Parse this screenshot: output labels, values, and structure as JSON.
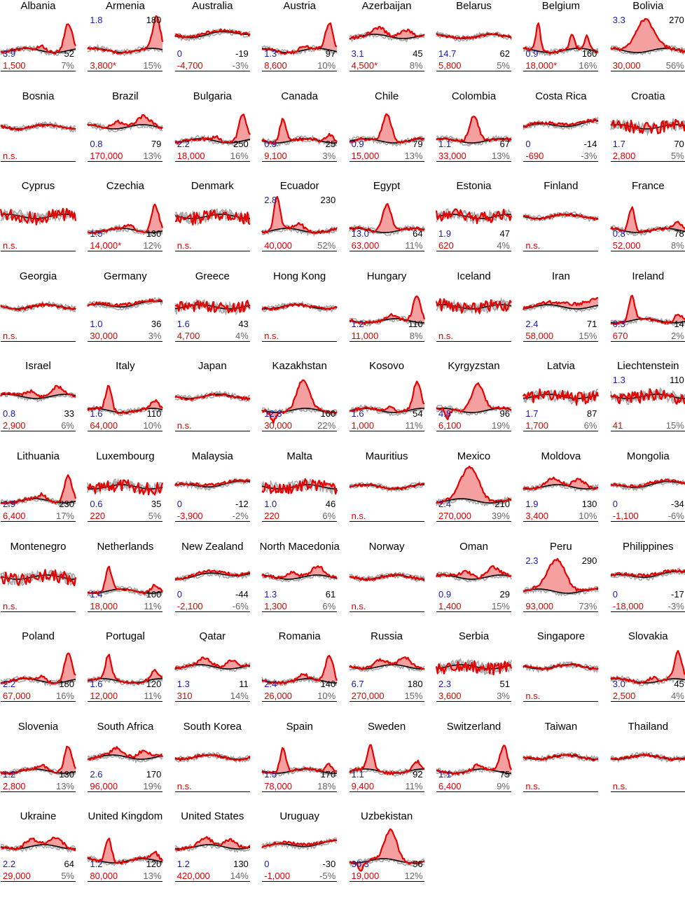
{
  "colors": {
    "selected": "#e60000",
    "fill": "#f4a0a0",
    "baseline": "#000000",
    "others": "#a8a8a8",
    "marker": "#c000c0",
    "blue_text": "#1a1aa6",
    "red_text": "#e00000",
    "grey_text": "#666666"
  },
  "chart_data": {
    "type": "line",
    "layout": "small multiples, 8 columns",
    "panels": [
      {
        "name": "Albania",
        "shape": "late",
        "left_value": "3.9",
        "right_value": "52",
        "excess": "1,500",
        "percent": "7%"
      },
      {
        "name": "Armenia",
        "shape": "arm",
        "left_value": "1.8",
        "right_value": "180",
        "excess": "3,800*",
        "percent": "15%",
        "values_top": true
      },
      {
        "name": "Australia",
        "shape": "mild",
        "left_value": "0",
        "right_value": "-19",
        "excess": "-4,700",
        "percent": "-3%"
      },
      {
        "name": "Austria",
        "shape": "late",
        "left_value": "1.3",
        "right_value": "97",
        "excess": "8,600",
        "percent": "10%"
      },
      {
        "name": "Azerbaijan",
        "shape": "wave",
        "left_value": "3.1",
        "right_value": "45",
        "excess": "4,500*",
        "percent": "8%"
      },
      {
        "name": "Belarus",
        "shape": "flat",
        "left_value": "14.7",
        "right_value": "62",
        "excess": "5,800",
        "percent": "5%"
      },
      {
        "name": "Belgium",
        "shape": "spikes",
        "left_value": "0.9",
        "right_value": "160",
        "excess": "18,000*",
        "percent": "16%"
      },
      {
        "name": "Bolivia",
        "shape": "bigmid",
        "left_value": "3.3",
        "right_value": "270",
        "excess": "30,000",
        "percent": "56%",
        "values_top": true
      },
      {
        "name": "Bosnia",
        "shape": "flat",
        "ns": true
      },
      {
        "name": "Brazil",
        "shape": "wave",
        "left_value": "0.8",
        "right_value": "79",
        "excess": "170,000",
        "percent": "13%"
      },
      {
        "name": "Bulgaria",
        "shape": "late",
        "left_value": "2.2",
        "right_value": "250",
        "excess": "18,000",
        "percent": "16%"
      },
      {
        "name": "Canada",
        "shape": "early",
        "left_value": "0.9",
        "right_value": "25",
        "excess": "9,100",
        "percent": "3%"
      },
      {
        "name": "Chile",
        "shape": "midspike",
        "left_value": "0.9",
        "right_value": "79",
        "excess": "15,000",
        "percent": "13%"
      },
      {
        "name": "Colombia",
        "shape": "midspike",
        "left_value": "1.1",
        "right_value": "67",
        "excess": "33,000",
        "percent": "13%"
      },
      {
        "name": "Costa Rica",
        "shape": "mild",
        "left_value": "0",
        "right_value": "-14",
        "excess": "-690",
        "percent": "-3%"
      },
      {
        "name": "Croatia",
        "shape": "noisy",
        "left_value": "1.7",
        "right_value": "70",
        "excess": "2,800",
        "percent": "5%"
      },
      {
        "name": "Cyprus",
        "shape": "noisy",
        "ns": true
      },
      {
        "name": "Czechia",
        "shape": "late",
        "left_value": "1.5",
        "right_value": "130",
        "excess": "14,000*",
        "percent": "12%"
      },
      {
        "name": "Denmark",
        "shape": "noisy",
        "ns": true
      },
      {
        "name": "Ecuador",
        "shape": "ecu",
        "left_value": "2.8",
        "right_value": "230",
        "excess": "40,000",
        "percent": "52%",
        "values_top": true
      },
      {
        "name": "Egypt",
        "shape": "midspike",
        "left_value": "13.0",
        "right_value": "64",
        "excess": "63,000",
        "percent": "11%"
      },
      {
        "name": "Estonia",
        "shape": "noisy",
        "left_value": "1.9",
        "right_value": "47",
        "excess": "620",
        "percent": "4%"
      },
      {
        "name": "Finland",
        "shape": "flat",
        "ns": true
      },
      {
        "name": "France",
        "shape": "early",
        "left_value": "0.8",
        "right_value": "78",
        "excess": "52,000",
        "percent": "8%"
      },
      {
        "name": "Georgia",
        "shape": "flat",
        "ns": true
      },
      {
        "name": "Germany",
        "shape": "mild",
        "left_value": "1.0",
        "right_value": "36",
        "excess": "30,000",
        "percent": "3%"
      },
      {
        "name": "Greece",
        "shape": "noisy",
        "left_value": "1.6",
        "right_value": "43",
        "excess": "4,700",
        "percent": "4%"
      },
      {
        "name": "Hong Kong",
        "shape": "flat",
        "ns": true
      },
      {
        "name": "Hungary",
        "shape": "late",
        "left_value": "1.2",
        "right_value": "110",
        "excess": "11,000",
        "percent": "8%"
      },
      {
        "name": "Iceland",
        "shape": "noisy",
        "ns": true
      },
      {
        "name": "Iran",
        "shape": "iran",
        "left_value": "2.4",
        "right_value": "71",
        "excess": "58,000",
        "percent": "15%"
      },
      {
        "name": "Ireland",
        "shape": "early",
        "left_value": "0.3",
        "right_value": "14",
        "excess": "670",
        "percent": "2%"
      },
      {
        "name": "Israel",
        "shape": "wave",
        "left_value": "0.8",
        "right_value": "33",
        "excess": "2,900",
        "percent": "6%"
      },
      {
        "name": "Italy",
        "shape": "early",
        "left_value": "1.6",
        "right_value": "110",
        "excess": "64,000",
        "percent": "10%"
      },
      {
        "name": "Japan",
        "shape": "flat",
        "ns": true
      },
      {
        "name": "Kazakhstan",
        "shape": "kaz",
        "left_value": "12.3",
        "right_value": "160",
        "excess": "30,000",
        "percent": "22%"
      },
      {
        "name": "Kosovo",
        "shape": "late",
        "left_value": "1.6",
        "right_value": "54",
        "excess": "1,000",
        "percent": "11%"
      },
      {
        "name": "Kyrgyzstan",
        "shape": "kaz",
        "left_value": "4.8",
        "right_value": "96",
        "excess": "6,100",
        "percent": "19%"
      },
      {
        "name": "Latvia",
        "shape": "noisy",
        "left_value": "1.7",
        "right_value": "87",
        "excess": "1,700",
        "percent": "6%"
      },
      {
        "name": "Liechtenstein",
        "shape": "noisy",
        "left_value": "1.3",
        "right_value": "110",
        "excess": "41",
        "percent": "15%",
        "values_top": true
      },
      {
        "name": "Lithuania",
        "shape": "late",
        "left_value": "2.9",
        "right_value": "230",
        "excess": "6,400",
        "percent": "17%"
      },
      {
        "name": "Luxembourg",
        "shape": "noisy",
        "left_value": "0.6",
        "right_value": "35",
        "excess": "220",
        "percent": "5%"
      },
      {
        "name": "Malaysia",
        "shape": "mild",
        "left_value": "0",
        "right_value": "-12",
        "excess": "-3,900",
        "percent": "-2%"
      },
      {
        "name": "Malta",
        "shape": "noisy",
        "left_value": "1.0",
        "right_value": "46",
        "excess": "220",
        "percent": "6%"
      },
      {
        "name": "Mauritius",
        "shape": "flat",
        "ns": true
      },
      {
        "name": "Mexico",
        "shape": "bigmid",
        "left_value": "2.4",
        "right_value": "210",
        "excess": "270,000",
        "percent": "39%"
      },
      {
        "name": "Moldova",
        "shape": "wave",
        "left_value": "1.9",
        "right_value": "130",
        "excess": "3,400",
        "percent": "10%"
      },
      {
        "name": "Mongolia",
        "shape": "mild",
        "left_value": "0",
        "right_value": "-34",
        "excess": "-1,100",
        "percent": "-6%"
      },
      {
        "name": "Montenegro",
        "shape": "noisy",
        "ns": true
      },
      {
        "name": "Netherlands",
        "shape": "early",
        "left_value": "1.4",
        "right_value": "100",
        "excess": "18,000",
        "percent": "11%"
      },
      {
        "name": "New Zealand",
        "shape": "mild",
        "left_value": "0",
        "right_value": "-44",
        "excess": "-2,100",
        "percent": "-6%"
      },
      {
        "name": "North Macedonia",
        "shape": "wave",
        "left_value": "1.3",
        "right_value": "61",
        "excess": "1,300",
        "percent": "6%"
      },
      {
        "name": "Norway",
        "shape": "flat",
        "ns": true
      },
      {
        "name": "Oman",
        "shape": "wave",
        "left_value": "0.9",
        "right_value": "29",
        "excess": "1,400",
        "percent": "15%"
      },
      {
        "name": "Peru",
        "shape": "bigmid",
        "left_value": "2.3",
        "right_value": "290",
        "excess": "93,000",
        "percent": "73%",
        "values_top": true
      },
      {
        "name": "Philippines",
        "shape": "mild",
        "left_value": "0",
        "right_value": "-17",
        "excess": "-18,000",
        "percent": "-3%"
      },
      {
        "name": "Poland",
        "shape": "late",
        "left_value": "2.2",
        "right_value": "180",
        "excess": "67,000",
        "percent": "16%"
      },
      {
        "name": "Portugal",
        "shape": "early",
        "left_value": "1.6",
        "right_value": "120",
        "excess": "12,000",
        "percent": "11%"
      },
      {
        "name": "Qatar",
        "shape": "wave",
        "left_value": "1.3",
        "right_value": "11",
        "excess": "310",
        "percent": "14%"
      },
      {
        "name": "Romania",
        "shape": "late",
        "left_value": "2.4",
        "right_value": "140",
        "excess": "26,000",
        "percent": "10%"
      },
      {
        "name": "Russia",
        "shape": "wave",
        "left_value": "6.7",
        "right_value": "180",
        "excess": "270,000",
        "percent": "15%"
      },
      {
        "name": "Serbia",
        "shape": "noisy",
        "left_value": "2.3",
        "right_value": "51",
        "excess": "3,600",
        "percent": "3%"
      },
      {
        "name": "Singapore",
        "shape": "flat",
        "ns": true
      },
      {
        "name": "Slovakia",
        "shape": "late",
        "left_value": "3.0",
        "right_value": "45",
        "excess": "2,500",
        "percent": "4%"
      },
      {
        "name": "Slovenia",
        "shape": "late",
        "left_value": "1.2",
        "right_value": "130",
        "excess": "2,800",
        "percent": "13%"
      },
      {
        "name": "South Africa",
        "shape": "wave",
        "left_value": "2.6",
        "right_value": "170",
        "excess": "96,000",
        "percent": "19%"
      },
      {
        "name": "South Korea",
        "shape": "flat",
        "ns": true
      },
      {
        "name": "Spain",
        "shape": "early",
        "left_value": "1.5",
        "right_value": "170",
        "excess": "78,000",
        "percent": "18%"
      },
      {
        "name": "Sweden",
        "shape": "early",
        "left_value": "1.1",
        "right_value": "92",
        "excess": "9,400",
        "percent": "11%"
      },
      {
        "name": "Switzerland",
        "shape": "late",
        "left_value": "1.1",
        "right_value": "75",
        "excess": "6,400",
        "percent": "9%"
      },
      {
        "name": "Taiwan",
        "shape": "flat",
        "ns": true
      },
      {
        "name": "Thailand",
        "shape": "flat",
        "ns": true
      },
      {
        "name": "Ukraine",
        "shape": "wave",
        "left_value": "2.2",
        "right_value": "64",
        "excess": "29,000",
        "percent": "5%"
      },
      {
        "name": "United Kingdom",
        "shape": "early",
        "left_value": "1.2",
        "right_value": "120",
        "excess": "80,000",
        "percent": "13%"
      },
      {
        "name": "United States",
        "shape": "wave",
        "left_value": "1.2",
        "right_value": "130",
        "excess": "420,000",
        "percent": "14%"
      },
      {
        "name": "Uruguay",
        "shape": "mild",
        "left_value": "0",
        "right_value": "-30",
        "excess": "-1,000",
        "percent": "-5%"
      },
      {
        "name": "Uzbekistan",
        "shape": "kaz",
        "left_value": "30.3",
        "right_value": "56",
        "excess": "19,000",
        "percent": "12%"
      }
    ],
    "not_significant_label": "n.s."
  }
}
